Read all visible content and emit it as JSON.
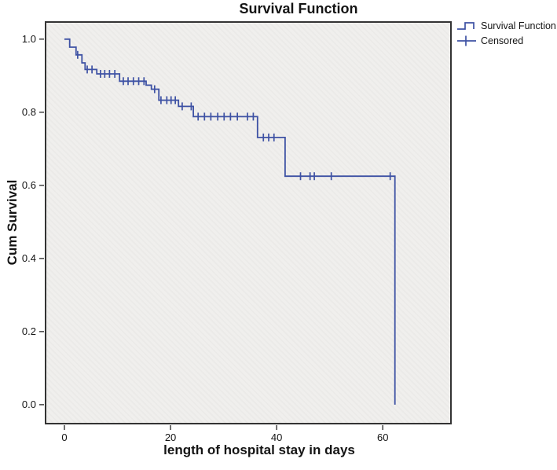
{
  "title": "Survival Function",
  "legend": {
    "items": [
      {
        "label": "Survival Function",
        "marker": "step-line"
      },
      {
        "label": "Censored",
        "marker": "plus"
      }
    ]
  },
  "chart_data": {
    "type": "line",
    "subtype": "kaplan-meier-step",
    "title": "Survival Function",
    "xlabel": "length of hospital stay in days",
    "ylabel": "Cum Survival",
    "xlim": [
      -3.7,
      73.0
    ],
    "ylim": [
      -0.054,
      1.049
    ],
    "x_ticks": [
      0,
      20,
      40,
      60
    ],
    "x_tick_labels": [
      "0",
      "20",
      "40",
      "60"
    ],
    "y_ticks": [
      0.0,
      0.2,
      0.4,
      0.6,
      0.8,
      1.0
    ],
    "y_tick_labels": [
      "0.0",
      "0.2",
      "0.4",
      "0.6",
      "0.8",
      "1.0"
    ],
    "grid": false,
    "legend_position": "top-right",
    "plot_background": "#f0efed",
    "frame_color": "#333333",
    "series": [
      {
        "name": "Survival Function",
        "color": "#3e52a4",
        "start": [
          0,
          1.0
        ],
        "step_points": [
          [
            1.0,
            0.978
          ],
          [
            2.2,
            0.957
          ],
          [
            3.3,
            0.935
          ],
          [
            3.9,
            0.917
          ],
          [
            6.1,
            0.905
          ],
          [
            10.4,
            0.885
          ],
          [
            15.4,
            0.874
          ],
          [
            16.4,
            0.863
          ],
          [
            17.8,
            0.833
          ],
          [
            21.5,
            0.816
          ],
          [
            24.3,
            0.788
          ],
          [
            36.4,
            0.731
          ],
          [
            41.6,
            0.625
          ],
          [
            62.3,
            0.0
          ]
        ],
        "censored": [
          [
            2.5,
            0.957
          ],
          [
            4.3,
            0.917
          ],
          [
            5.2,
            0.917
          ],
          [
            6.8,
            0.905
          ],
          [
            7.6,
            0.905
          ],
          [
            8.5,
            0.905
          ],
          [
            9.5,
            0.905
          ],
          [
            11.1,
            0.885
          ],
          [
            12.0,
            0.885
          ],
          [
            13.0,
            0.885
          ],
          [
            14.0,
            0.885
          ],
          [
            15.0,
            0.885
          ],
          [
            17.0,
            0.863
          ],
          [
            18.2,
            0.833
          ],
          [
            19.3,
            0.833
          ],
          [
            20.1,
            0.833
          ],
          [
            20.9,
            0.833
          ],
          [
            22.2,
            0.816
          ],
          [
            23.9,
            0.816
          ],
          [
            25.2,
            0.788
          ],
          [
            26.4,
            0.788
          ],
          [
            27.6,
            0.788
          ],
          [
            28.9,
            0.788
          ],
          [
            30.1,
            0.788
          ],
          [
            31.3,
            0.788
          ],
          [
            32.6,
            0.788
          ],
          [
            34.5,
            0.788
          ],
          [
            35.6,
            0.788
          ],
          [
            37.5,
            0.731
          ],
          [
            38.5,
            0.731
          ],
          [
            39.5,
            0.731
          ],
          [
            44.5,
            0.625
          ],
          [
            46.3,
            0.625
          ],
          [
            47.1,
            0.625
          ],
          [
            50.3,
            0.625
          ],
          [
            61.4,
            0.625
          ]
        ]
      }
    ]
  }
}
